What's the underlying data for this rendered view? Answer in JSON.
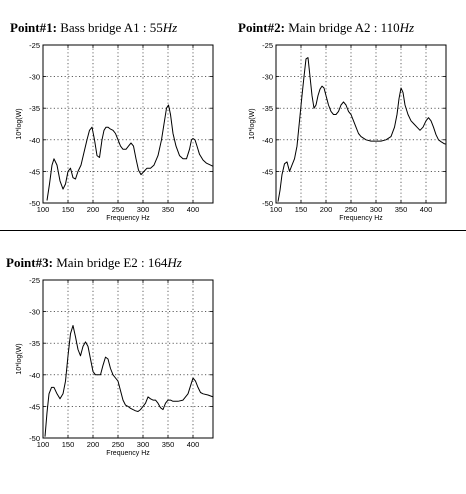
{
  "panels": [
    {
      "title": {
        "label": "Point#1:",
        "desc": "Bass bridge A1 : 55",
        "hz": "Hz"
      }
    },
    {
      "title": {
        "label": "Point#2:",
        "desc": "Main bridge A2 : 110",
        "hz": "Hz"
      }
    },
    {
      "title": {
        "label": "Point#3:",
        "desc": "Main bridge E2 : 164",
        "hz": "Hz"
      }
    }
  ],
  "chart_data": [
    {
      "type": "line",
      "xlabel": "Frequency Hz",
      "ylabel": "10*log(W)",
      "xlim": [
        100,
        440
      ],
      "ylim": [
        -50,
        -25
      ],
      "xticks": [
        100,
        150,
        200,
        250,
        300,
        350,
        400
      ],
      "yticks": [
        -25,
        -30,
        -35,
        -40,
        -45,
        -50
      ],
      "grid": true,
      "series": [
        {
          "color": "#000000",
          "x": [
            108,
            113,
            118,
            122,
            128,
            134,
            140,
            145,
            150,
            155,
            160,
            165,
            170,
            176,
            182,
            188,
            193,
            198,
            203,
            208,
            213,
            218,
            222,
            226,
            230,
            235,
            240,
            245,
            250,
            255,
            260,
            266,
            271,
            276,
            281,
            286,
            291,
            296,
            302,
            308,
            315,
            322,
            330,
            337,
            343,
            347,
            351,
            355,
            360,
            366,
            373,
            380,
            387,
            393,
            397,
            400,
            404,
            408,
            413,
            420,
            427,
            435,
            440
          ],
          "y": [
            -49.6,
            -47.0,
            -44.0,
            -43.0,
            -44.0,
            -46.5,
            -47.8,
            -47.0,
            -45.0,
            -44.5,
            -46.0,
            -46.2,
            -45.0,
            -44.0,
            -42.0,
            -40.0,
            -38.5,
            -38.0,
            -40.0,
            -42.5,
            -42.8,
            -40.0,
            -38.5,
            -38.0,
            -38.0,
            -38.3,
            -38.5,
            -39.0,
            -40.0,
            -41.0,
            -41.5,
            -41.5,
            -41.0,
            -40.5,
            -41.0,
            -43.0,
            -44.8,
            -45.5,
            -45.0,
            -44.5,
            -44.5,
            -44.0,
            -42.5,
            -40.0,
            -37.0,
            -35.0,
            -34.5,
            -36.0,
            -39.0,
            -41.0,
            -42.5,
            -43.0,
            -43.0,
            -41.5,
            -40.0,
            -39.8,
            -40.0,
            -41.0,
            -42.3,
            -43.2,
            -43.7,
            -44.0,
            -44.2
          ]
        }
      ]
    },
    {
      "type": "line",
      "xlabel": "Frequency Hz",
      "ylabel": "10*log(W)",
      "xlim": [
        100,
        440
      ],
      "ylim": [
        -50,
        -25
      ],
      "xticks": [
        100,
        150,
        200,
        250,
        300,
        350,
        400
      ],
      "yticks": [
        -25,
        -30,
        -35,
        -40,
        -45,
        -50
      ],
      "grid": true,
      "series": [
        {
          "color": "#000000",
          "x": [
            104,
            108,
            112,
            117,
            122,
            127,
            132,
            137,
            142,
            147,
            152,
            156,
            160,
            164,
            168,
            172,
            176,
            180,
            184,
            188,
            192,
            196,
            200,
            205,
            210,
            215,
            220,
            225,
            230,
            235,
            240,
            245,
            250,
            255,
            260,
            265,
            270,
            280,
            290,
            300,
            310,
            320,
            330,
            337,
            342,
            346,
            350,
            354,
            358,
            364,
            370,
            376,
            382,
            388,
            394,
            400,
            405,
            410,
            415,
            420,
            425,
            430,
            436,
            440
          ],
          "y": [
            -49.8,
            -48.0,
            -45.5,
            -43.8,
            -43.5,
            -45.0,
            -44.0,
            -43.0,
            -41.0,
            -37.0,
            -33.0,
            -30.0,
            -27.2,
            -27.0,
            -30.0,
            -33.0,
            -35.0,
            -34.5,
            -33.0,
            -32.0,
            -31.5,
            -31.8,
            -33.0,
            -34.5,
            -35.5,
            -36.0,
            -36.0,
            -35.5,
            -34.5,
            -34.0,
            -34.5,
            -35.5,
            -36.0,
            -37.0,
            -38.0,
            -39.0,
            -39.5,
            -40.0,
            -40.2,
            -40.2,
            -40.2,
            -40.0,
            -39.5,
            -38.0,
            -36.0,
            -33.5,
            -31.8,
            -32.5,
            -34.5,
            -36.0,
            -37.0,
            -37.5,
            -38.0,
            -38.5,
            -38.0,
            -37.0,
            -36.5,
            -37.0,
            -38.0,
            -39.2,
            -40.0,
            -40.3,
            -40.6,
            -40.7
          ]
        }
      ]
    },
    {
      "type": "line",
      "xlabel": "Frequency Hz",
      "ylabel": "10*log(W)",
      "xlim": [
        100,
        440
      ],
      "ylim": [
        -50,
        -25
      ],
      "xticks": [
        100,
        150,
        200,
        250,
        300,
        350,
        400
      ],
      "yticks": [
        -25,
        -30,
        -35,
        -40,
        -45,
        -50
      ],
      "grid": true,
      "series": [
        {
          "color": "#000000",
          "x": [
            104,
            108,
            112,
            117,
            122,
            128,
            134,
            140,
            145,
            150,
            155,
            160,
            165,
            170,
            175,
            180,
            185,
            190,
            195,
            200,
            205,
            210,
            215,
            220,
            225,
            230,
            235,
            240,
            245,
            250,
            255,
            260,
            265,
            270,
            275,
            280,
            285,
            290,
            295,
            300,
            305,
            310,
            315,
            320,
            325,
            330,
            335,
            340,
            345,
            350,
            355,
            360,
            370,
            380,
            390,
            396,
            400,
            405,
            410,
            415,
            420,
            430,
            440
          ],
          "y": [
            -49.8,
            -46.0,
            -43.0,
            -42.0,
            -42.0,
            -43.0,
            -43.8,
            -43.0,
            -41.0,
            -37.0,
            -33.5,
            -32.2,
            -34.0,
            -36.0,
            -37.0,
            -35.5,
            -34.8,
            -35.5,
            -37.5,
            -39.5,
            -40.0,
            -40.0,
            -40.0,
            -38.5,
            -37.2,
            -37.5,
            -39.0,
            -40.0,
            -40.5,
            -41.0,
            -42.5,
            -44.0,
            -44.8,
            -45.0,
            -45.3,
            -45.5,
            -45.7,
            -45.8,
            -45.5,
            -45.0,
            -44.5,
            -43.5,
            -43.8,
            -44.0,
            -44.0,
            -44.5,
            -45.2,
            -45.5,
            -44.5,
            -44.0,
            -44.0,
            -44.2,
            -44.2,
            -44.0,
            -43.0,
            -41.5,
            -40.5,
            -41.0,
            -42.0,
            -42.8,
            -43.0,
            -43.2,
            -43.5
          ]
        }
      ]
    }
  ]
}
